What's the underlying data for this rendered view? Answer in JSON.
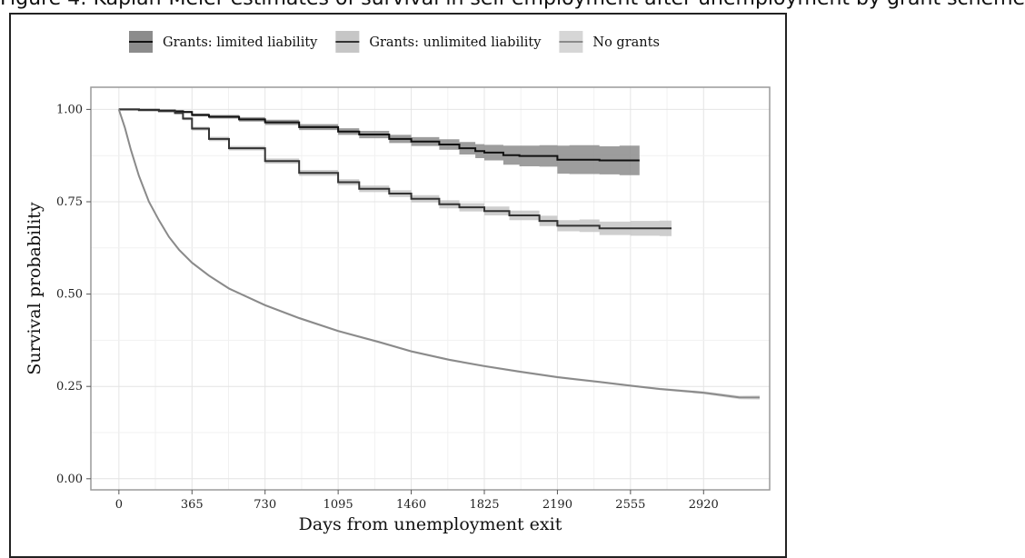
{
  "caption": "Figure 4: Kaplan-Meier estimates of survival in self-employment after unemployment by grant scheme",
  "chart_data": {
    "type": "line",
    "xlabel": "Days from unemployment exit",
    "ylabel": "Survival probability",
    "xlim": [
      -140,
      3250
    ],
    "ylim": [
      -0.03,
      1.06
    ],
    "xticks": [
      0,
      365,
      730,
      1095,
      1460,
      1825,
      2190,
      2555,
      2920
    ],
    "xtick_labels": [
      "0",
      "365",
      "730",
      "1095",
      "1460",
      "1825",
      "2190",
      "2555",
      "2920"
    ],
    "yticks": [
      0,
      0.25,
      0.5,
      0.75,
      1.0
    ],
    "ytick_labels": [
      "0.00",
      "0.25",
      "0.50",
      "0.75",
      "1.00"
    ],
    "grid": true,
    "legend_position": "top",
    "series": [
      {
        "name": "Grants: limited liability",
        "color": "#111111",
        "band_color": "#8c8c8c",
        "step": true,
        "x": [
          0,
          100,
          200,
          280,
          320,
          365,
          450,
          600,
          730,
          900,
          1095,
          1200,
          1350,
          1460,
          1600,
          1700,
          1780,
          1825,
          1920,
          2000,
          2100,
          2190,
          2250,
          2400,
          2500,
          2555,
          2600
        ],
        "y": [
          1.0,
          0.999,
          0.997,
          0.995,
          0.993,
          0.985,
          0.98,
          0.973,
          0.965,
          0.952,
          0.94,
          0.932,
          0.92,
          0.913,
          0.905,
          0.895,
          0.887,
          0.883,
          0.876,
          0.874,
          0.874,
          0.864,
          0.864,
          0.862,
          0.862,
          0.862,
          0.862
        ],
        "lower": [
          1.0,
          0.998,
          0.996,
          0.993,
          0.99,
          0.981,
          0.975,
          0.967,
          0.958,
          0.944,
          0.931,
          0.922,
          0.909,
          0.901,
          0.891,
          0.878,
          0.868,
          0.862,
          0.85,
          0.846,
          0.845,
          0.826,
          0.825,
          0.824,
          0.822,
          0.822,
          0.82
        ],
        "upper": [
          1.0,
          1.0,
          0.998,
          0.997,
          0.996,
          0.989,
          0.985,
          0.979,
          0.972,
          0.96,
          0.949,
          0.942,
          0.931,
          0.925,
          0.919,
          0.912,
          0.906,
          0.904,
          0.902,
          0.902,
          0.903,
          0.902,
          0.903,
          0.9,
          0.902,
          0.902,
          0.904
        ]
      },
      {
        "name": "Grants: unlimited liability",
        "color": "#333333",
        "band_color": "#c6c6c6",
        "step": true,
        "x": [
          0,
          100,
          200,
          280,
          320,
          365,
          450,
          550,
          730,
          900,
          1095,
          1200,
          1350,
          1460,
          1600,
          1700,
          1825,
          1950,
          2100,
          2190,
          2300,
          2400,
          2555,
          2700,
          2760
        ],
        "y": [
          1.0,
          0.998,
          0.995,
          0.99,
          0.975,
          0.948,
          0.92,
          0.895,
          0.86,
          0.828,
          0.803,
          0.785,
          0.772,
          0.758,
          0.743,
          0.735,
          0.725,
          0.713,
          0.698,
          0.685,
          0.685,
          0.678,
          0.678,
          0.678,
          0.678
        ],
        "lower": [
          1.0,
          0.997,
          0.993,
          0.987,
          0.971,
          0.943,
          0.914,
          0.889,
          0.853,
          0.82,
          0.795,
          0.776,
          0.763,
          0.748,
          0.732,
          0.724,
          0.713,
          0.7,
          0.684,
          0.67,
          0.668,
          0.66,
          0.658,
          0.657,
          0.656
        ],
        "upper": [
          1.0,
          0.999,
          0.997,
          0.993,
          0.979,
          0.953,
          0.926,
          0.901,
          0.867,
          0.836,
          0.811,
          0.794,
          0.781,
          0.768,
          0.754,
          0.746,
          0.737,
          0.726,
          0.712,
          0.7,
          0.702,
          0.696,
          0.698,
          0.699,
          0.7
        ]
      },
      {
        "name": "No grants",
        "color": "#8a8a8a",
        "band_color": "#d6d6d6",
        "step": false,
        "x": [
          0,
          30,
          60,
          100,
          150,
          200,
          250,
          300,
          365,
          450,
          550,
          730,
          900,
          1095,
          1300,
          1460,
          1650,
          1825,
          2000,
          2190,
          2400,
          2555,
          2700,
          2920,
          3100,
          3200
        ],
        "y": [
          1.0,
          0.95,
          0.89,
          0.82,
          0.75,
          0.7,
          0.655,
          0.62,
          0.585,
          0.55,
          0.515,
          0.47,
          0.435,
          0.4,
          0.37,
          0.345,
          0.322,
          0.305,
          0.29,
          0.275,
          0.262,
          0.252,
          0.243,
          0.233,
          0.22,
          0.22
        ],
        "lower": [
          1.0,
          0.948,
          0.887,
          0.817,
          0.747,
          0.697,
          0.652,
          0.617,
          0.582,
          0.547,
          0.512,
          0.467,
          0.432,
          0.397,
          0.367,
          0.342,
          0.319,
          0.302,
          0.287,
          0.272,
          0.259,
          0.249,
          0.24,
          0.229,
          0.215,
          0.214
        ],
        "upper": [
          1.0,
          0.952,
          0.893,
          0.823,
          0.753,
          0.703,
          0.658,
          0.623,
          0.588,
          0.553,
          0.518,
          0.473,
          0.438,
          0.403,
          0.373,
          0.348,
          0.325,
          0.308,
          0.293,
          0.278,
          0.265,
          0.255,
          0.246,
          0.237,
          0.225,
          0.226
        ]
      }
    ]
  }
}
